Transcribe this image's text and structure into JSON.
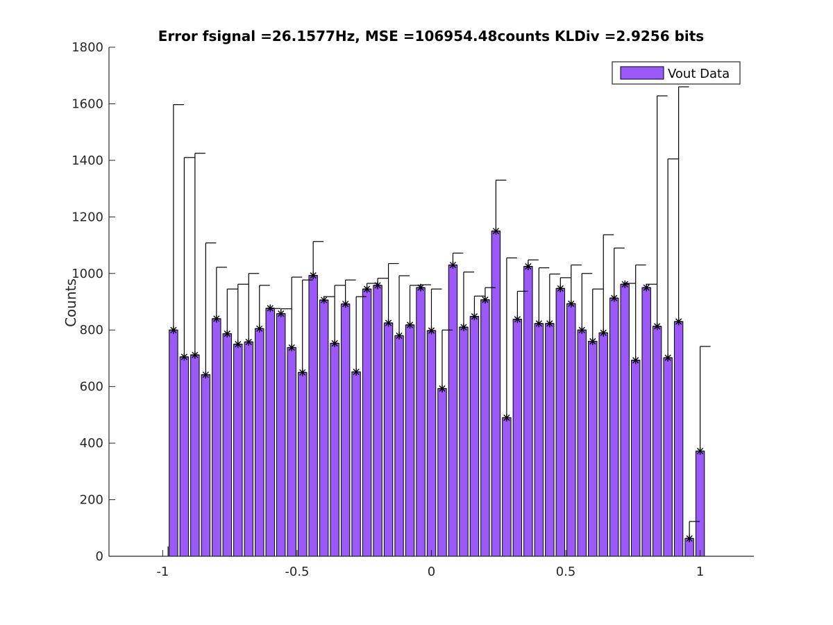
{
  "chart_data": {
    "type": "bar",
    "title": "Error fsignal =26.1577Hz, MSE =106954.48counts KLDiv =2.9256 bits",
    "xlabel": "",
    "ylabel": "Counts",
    "xlim": [
      -1.2,
      1.2
    ],
    "ylim": [
      0,
      1800
    ],
    "xticks": [
      -1,
      -0.5,
      0,
      0.5,
      1
    ],
    "xtick_labels": [
      "-1",
      "-0.5",
      "0",
      "0.5",
      "1"
    ],
    "yticks": [
      0,
      200,
      400,
      600,
      800,
      1000,
      1200,
      1400,
      1600,
      1800
    ],
    "ytick_labels": [
      "0",
      "200",
      "400",
      "600",
      "800",
      "1000",
      "1200",
      "1400",
      "1600",
      "1800"
    ],
    "grid": false,
    "legend_position": "top-right",
    "bar_color": "#9b59f7",
    "series": [
      {
        "name": "Vout Data",
        "x": [
          -0.96,
          -0.92,
          -0.88,
          -0.84,
          -0.8,
          -0.76,
          -0.72,
          -0.68,
          -0.64,
          -0.6,
          -0.56,
          -0.52,
          -0.48,
          -0.44,
          -0.4,
          -0.36,
          -0.32,
          -0.28,
          -0.24,
          -0.2,
          -0.16,
          -0.12,
          -0.08,
          -0.04,
          0.0,
          0.04,
          0.08,
          0.12,
          0.16,
          0.2,
          0.24,
          0.28,
          0.32,
          0.36,
          0.4,
          0.44,
          0.48,
          0.52,
          0.56,
          0.6,
          0.64,
          0.68,
          0.72,
          0.76,
          0.8,
          0.84,
          0.88,
          0.92,
          0.96,
          1.0
        ],
        "values": [
          800,
          705,
          712,
          642,
          840,
          787,
          750,
          758,
          805,
          877,
          858,
          738,
          650,
          993,
          906,
          753,
          892,
          652,
          945,
          958,
          825,
          780,
          818,
          950,
          798,
          593,
          1030,
          810,
          848,
          907,
          1150,
          490,
          838,
          1025,
          823,
          823,
          947,
          893,
          800,
          760,
          790,
          913,
          962,
          693,
          950,
          813,
          702,
          830,
          63,
          372
        ]
      }
    ],
    "expected_markers": {
      "marker": "*",
      "values": [
        1597,
        1410,
        1425,
        1108,
        1022,
        945,
        962,
        1000,
        958,
        876,
        875,
        987,
        977,
        1113,
        918,
        958,
        977,
        918,
        965,
        983,
        1035,
        992,
        958,
        960,
        945,
        800,
        1072,
        1005,
        920,
        950,
        1330,
        1055,
        937,
        1048,
        1020,
        998,
        985,
        1030,
        1000,
        945,
        1137,
        1090,
        965,
        1030,
        962,
        1628,
        1405,
        1660,
        123,
        742
      ]
    },
    "stray_mark_x": -0.98
  }
}
